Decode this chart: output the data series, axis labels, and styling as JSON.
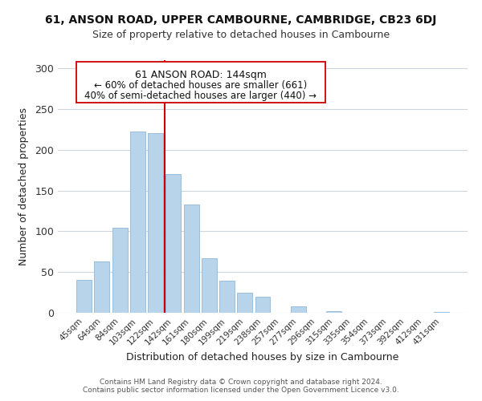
{
  "title": "61, ANSON ROAD, UPPER CAMBOURNE, CAMBRIDGE, CB23 6DJ",
  "subtitle": "Size of property relative to detached houses in Cambourne",
  "xlabel": "Distribution of detached houses by size in Cambourne",
  "ylabel": "Number of detached properties",
  "footer_line1": "Contains HM Land Registry data © Crown copyright and database right 2024.",
  "footer_line2": "Contains public sector information licensed under the Open Government Licence v3.0.",
  "categories": [
    "45sqm",
    "64sqm",
    "84sqm",
    "103sqm",
    "122sqm",
    "142sqm",
    "161sqm",
    "180sqm",
    "199sqm",
    "219sqm",
    "238sqm",
    "257sqm",
    "277sqm",
    "296sqm",
    "315sqm",
    "335sqm",
    "354sqm",
    "373sqm",
    "392sqm",
    "412sqm",
    "431sqm"
  ],
  "values": [
    40,
    63,
    104,
    222,
    220,
    170,
    133,
    67,
    39,
    25,
    20,
    0,
    8,
    0,
    2,
    0,
    0,
    0,
    0,
    0,
    1
  ],
  "bar_color": "#b8d4ea",
  "bar_edge_color": "#90b8d8",
  "vline_color": "#cc0000",
  "annotation_title": "61 ANSON ROAD: 144sqm",
  "annotation_line1": "← 60% of detached houses are smaller (661)",
  "annotation_line2": "40% of semi-detached houses are larger (440) →",
  "annotation_box_edge": "#cc0000",
  "ylim": [
    0,
    310
  ],
  "yticks": [
    0,
    50,
    100,
    150,
    200,
    250,
    300
  ],
  "background_color": "#ffffff",
  "grid_color": "#ccd6e0"
}
